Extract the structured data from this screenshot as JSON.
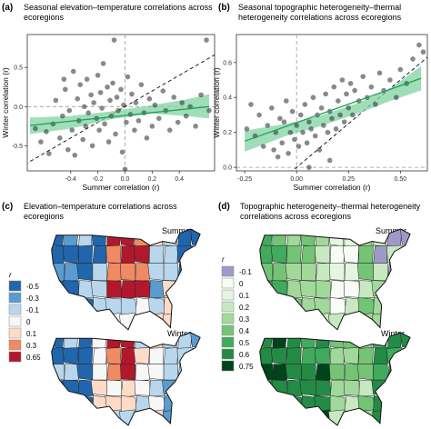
{
  "panels": {
    "a": {
      "tag": "(a)",
      "title_line1": "Seasonal elevation–temperature correlations across",
      "title_line2": "ecoregions",
      "xlabel": "Summer correlation (r)",
      "ylabel": "Winter correlation (r)",
      "xticks": [
        "-0.4",
        "-0.2",
        "0.0",
        "0.2",
        "0.4"
      ],
      "yticks": [
        "-0.5",
        "0.0",
        "0.5"
      ]
    },
    "b": {
      "tag": "(b)",
      "title_line1": "Seasonal topographic heterogeneity–thermal",
      "title_line2": "heterogeneity correlations across ecoregions",
      "xlabel": "Summer correlation (r)",
      "ylabel": "Winter correlation (r)",
      "xticks": [
        "-0.25",
        "0.00",
        "0.25",
        "0.50"
      ],
      "yticks": [
        "0.0",
        "0.2",
        "0.4",
        "0.6"
      ]
    },
    "c": {
      "tag": "(c)",
      "title_line1": "Elevation–temperature correlations across",
      "title_line2": "ecoregions",
      "map_top_label": "Summer",
      "map_bottom_label": "Winter",
      "legend_title": "r",
      "legend": [
        {
          "label": "-0.5",
          "color": "#2166ac"
        },
        {
          "label": "-0.3",
          "color": "#5a9bd0"
        },
        {
          "label": "-0.1",
          "color": "#b9d7ec"
        },
        {
          "label": "0",
          "color": "#f7f7f7"
        },
        {
          "label": "0.1",
          "color": "#fddbc7"
        },
        {
          "label": "0.3",
          "color": "#ef8a62"
        },
        {
          "label": "0.65",
          "color": "#b2182b"
        }
      ]
    },
    "d": {
      "tag": "(d)",
      "title_line1": "Topographic heterogeneity–thermal heterogeneity",
      "title_line2": "correlations across ecoregions",
      "map_top_label": "Summer",
      "map_bottom_label": "Winter",
      "legend_title": "r",
      "legend": [
        {
          "label": "-0.1",
          "color": "#9e9ac8"
        },
        {
          "label": "0",
          "color": "#f7fcf5"
        },
        {
          "label": "0.1",
          "color": "#e5f5e0"
        },
        {
          "label": "0.2",
          "color": "#c7e9c0"
        },
        {
          "label": "0.3",
          "color": "#a1d99b"
        },
        {
          "label": "0.4",
          "color": "#74c476"
        },
        {
          "label": "0.5",
          "color": "#41ab5d"
        },
        {
          "label": "0.6",
          "color": "#238b45"
        },
        {
          "label": "0.75",
          "color": "#00441b"
        }
      ]
    }
  },
  "chart_data": [
    {
      "type": "scatter",
      "panel": "a",
      "xlim": [
        -0.72,
        0.66
      ],
      "ylim": [
        -0.82,
        0.92
      ],
      "reference_lines": [
        "x=0 dashed",
        "y=0 dashed",
        "1:1 dashed"
      ],
      "fit_line": {
        "x": [
          -0.7,
          0.62
        ],
        "y": [
          -0.24,
          0.0
        ]
      },
      "fit_band": {
        "x": [
          -0.7,
          -0.4,
          -0.1,
          0.2,
          0.45,
          0.62
        ],
        "lower": [
          -0.35,
          -0.28,
          -0.16,
          -0.09,
          -0.12,
          -0.15
        ],
        "upper": [
          -0.14,
          -0.12,
          -0.06,
          0.02,
          0.09,
          0.16
        ]
      },
      "points": [
        [
          -0.66,
          -0.28
        ],
        [
          -0.62,
          -0.45
        ],
        [
          -0.58,
          -0.32
        ],
        [
          -0.56,
          -0.6
        ],
        [
          -0.53,
          -0.22
        ],
        [
          -0.51,
          0.08
        ],
        [
          -0.48,
          -0.4
        ],
        [
          -0.46,
          -0.12
        ],
        [
          -0.44,
          0.22
        ],
        [
          -0.42,
          -0.55
        ],
        [
          -0.41,
          -0.05
        ],
        [
          -0.39,
          -0.3
        ],
        [
          -0.38,
          0.45
        ],
        [
          -0.37,
          -0.62
        ],
        [
          -0.35,
          0.1
        ],
        [
          -0.34,
          -0.18
        ],
        [
          -0.33,
          0.28
        ],
        [
          -0.31,
          -0.42
        ],
        [
          -0.3,
          0.0
        ],
        [
          -0.29,
          -0.25
        ],
        [
          -0.28,
          0.35
        ],
        [
          -0.27,
          -0.08
        ],
        [
          -0.25,
          0.15
        ],
        [
          -0.24,
          -0.5
        ],
        [
          -0.23,
          0.05
        ],
        [
          -0.21,
          -0.15
        ],
        [
          -0.2,
          0.4
        ],
        [
          -0.19,
          -0.3
        ],
        [
          -0.18,
          0.18
        ],
        [
          -0.17,
          -0.02
        ],
        [
          -0.16,
          0.55
        ],
        [
          -0.15,
          -0.22
        ],
        [
          -0.13,
          0.25
        ],
        [
          -0.12,
          -0.45
        ],
        [
          -0.11,
          0.08
        ],
        [
          -0.1,
          -0.12
        ],
        [
          -0.09,
          0.3
        ],
        [
          -0.07,
          -0.35
        ],
        [
          -0.06,
          0.12
        ],
        [
          -0.05,
          -0.05
        ],
        [
          -0.03,
          0.22
        ],
        [
          -0.02,
          -0.58
        ],
        [
          -0.01,
          0.02
        ],
        [
          0.01,
          -0.2
        ],
        [
          0.02,
          0.38
        ],
        [
          0.04,
          -0.1
        ],
        [
          0.05,
          0.16
        ],
        [
          0.07,
          -0.3
        ],
        [
          0.08,
          0.05
        ],
        [
          0.1,
          -0.18
        ],
        [
          0.12,
          0.28
        ],
        [
          0.14,
          -0.08
        ],
        [
          0.16,
          -0.4
        ],
        [
          0.18,
          0.1
        ],
        [
          0.2,
          -0.25
        ],
        [
          0.22,
          0.02
        ],
        [
          0.25,
          -0.15
        ],
        [
          0.28,
          0.2
        ],
        [
          0.3,
          -0.05
        ],
        [
          0.33,
          -0.3
        ],
        [
          0.36,
          0.12
        ],
        [
          0.39,
          -0.2
        ],
        [
          0.42,
          0.05
        ],
        [
          0.45,
          -0.12
        ],
        [
          0.48,
          0.0
        ],
        [
          0.52,
          -0.25
        ],
        [
          0.56,
          0.15
        ],
        [
          0.6,
          0.85
        ],
        [
          0.62,
          -0.05
        ],
        [
          -0.08,
          0.85
        ],
        [
          0.0,
          -0.8
        ],
        [
          -0.45,
          0.35
        ]
      ]
    },
    {
      "type": "scatter",
      "panel": "b",
      "xlim": [
        -0.29,
        0.63
      ],
      "ylim": [
        -0.02,
        0.76
      ],
      "reference_lines": [
        "x=0 dashed",
        "y=0 dashed",
        "1:1 dashed"
      ],
      "fit_line": {
        "x": [
          -0.25,
          0.6
        ],
        "y": [
          0.15,
          0.51
        ]
      },
      "fit_band": {
        "x": [
          -0.25,
          -0.05,
          0.1,
          0.3,
          0.45,
          0.6
        ],
        "lower": [
          0.09,
          0.18,
          0.23,
          0.31,
          0.38,
          0.44
        ],
        "upper": [
          0.21,
          0.25,
          0.29,
          0.37,
          0.45,
          0.58
        ]
      },
      "points": [
        [
          -0.24,
          0.22
        ],
        [
          -0.22,
          0.36
        ],
        [
          -0.2,
          0.18
        ],
        [
          -0.18,
          0.3
        ],
        [
          -0.16,
          0.12
        ],
        [
          -0.14,
          0.24
        ],
        [
          -0.12,
          0.34
        ],
        [
          -0.11,
          0.1
        ],
        [
          -0.1,
          0.2
        ],
        [
          -0.08,
          0.28
        ],
        [
          -0.07,
          0.14
        ],
        [
          -0.06,
          0.26
        ],
        [
          -0.05,
          0.38
        ],
        [
          -0.04,
          0.08
        ],
        [
          -0.03,
          0.2
        ],
        [
          -0.02,
          0.32
        ],
        [
          -0.01,
          0.16
        ],
        [
          0.0,
          0.24
        ],
        [
          0.01,
          0.12
        ],
        [
          0.02,
          0.3
        ],
        [
          0.03,
          0.2
        ],
        [
          0.04,
          0.36
        ],
        [
          0.05,
          0.14
        ],
        [
          0.06,
          0.26
        ],
        [
          0.07,
          0.22
        ],
        [
          0.08,
          0.4
        ],
        [
          0.09,
          0.18
        ],
        [
          0.1,
          0.3
        ],
        [
          0.11,
          0.1
        ],
        [
          0.12,
          0.34
        ],
        [
          0.13,
          0.24
        ],
        [
          0.14,
          0.42
        ],
        [
          0.15,
          0.2
        ],
        [
          0.16,
          0.32
        ],
        [
          0.17,
          0.28
        ],
        [
          0.18,
          0.46
        ],
        [
          0.19,
          0.22
        ],
        [
          0.2,
          0.38
        ],
        [
          0.21,
          0.3
        ],
        [
          0.22,
          0.5
        ],
        [
          0.23,
          0.26
        ],
        [
          0.24,
          0.42
        ],
        [
          0.25,
          0.34
        ],
        [
          0.26,
          0.48
        ],
        [
          0.27,
          0.3
        ],
        [
          0.28,
          0.44
        ],
        [
          0.3,
          0.38
        ],
        [
          0.32,
          0.52
        ],
        [
          0.34,
          0.4
        ],
        [
          0.36,
          0.46
        ],
        [
          0.38,
          0.36
        ],
        [
          0.4,
          0.54
        ],
        [
          0.42,
          0.44
        ],
        [
          0.45,
          0.5
        ],
        [
          0.48,
          0.4
        ],
        [
          0.5,
          0.56
        ],
        [
          0.53,
          0.48
        ],
        [
          0.56,
          0.62
        ],
        [
          0.59,
          0.7
        ],
        [
          0.61,
          0.66
        ],
        [
          0.16,
          0.04
        ],
        [
          -0.09,
          0.06
        ],
        [
          0.06,
          0.0
        ]
      ]
    }
  ]
}
